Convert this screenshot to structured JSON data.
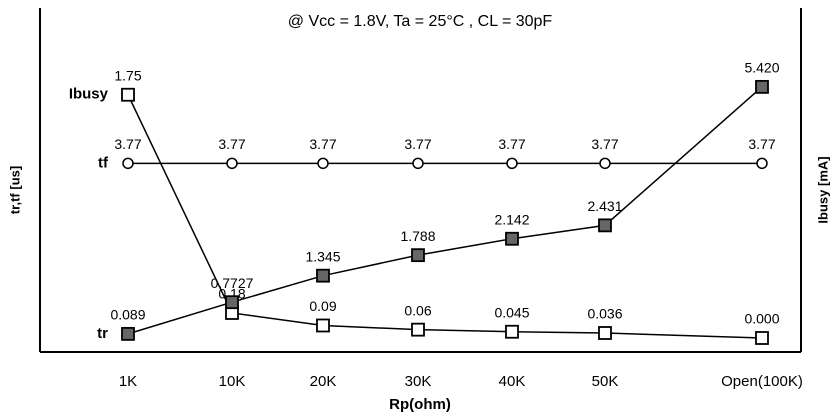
{
  "chart_data": {
    "type": "line",
    "title": "@ Vcc = 1.8V,  Ta = 25°C , CL = 30pF",
    "x_label": "Rp(ohm)",
    "y_label": "tr,tf [us]",
    "y2_label": "Ibusy [mA]",
    "categories": [
      "1K",
      "10K",
      "20K",
      "30K",
      "40K",
      "50K",
      "Open(100K)"
    ],
    "ylim": [
      0,
      6
    ],
    "y2lim": [
      0,
      2
    ],
    "series": [
      {
        "name": "Ibusy",
        "axis": "y2",
        "marker": "square-open",
        "color": "#000000",
        "values": [
          1.75,
          0.18,
          0.09,
          0.06,
          0.045,
          0.036,
          0
        ],
        "value_labels": [
          "1.75",
          "0.18",
          "0.09",
          "0.06",
          "0.045",
          "0.036",
          "0.000"
        ]
      },
      {
        "name": "tr",
        "marker": "square-filled",
        "color": "#666666",
        "values": [
          0.089,
          0.7727,
          1.345,
          1.788,
          2.142,
          2.431,
          5.42
        ],
        "value_labels": [
          "0.089",
          "0.7727",
          "1.345",
          "1.788",
          "2.142",
          "2.431",
          "5.420"
        ]
      },
      {
        "name": "tf",
        "marker": "circle-open",
        "color": "#000000",
        "values": [
          3.77,
          3.77,
          3.77,
          3.77,
          3.77,
          3.77,
          3.77
        ]
      }
    ]
  }
}
